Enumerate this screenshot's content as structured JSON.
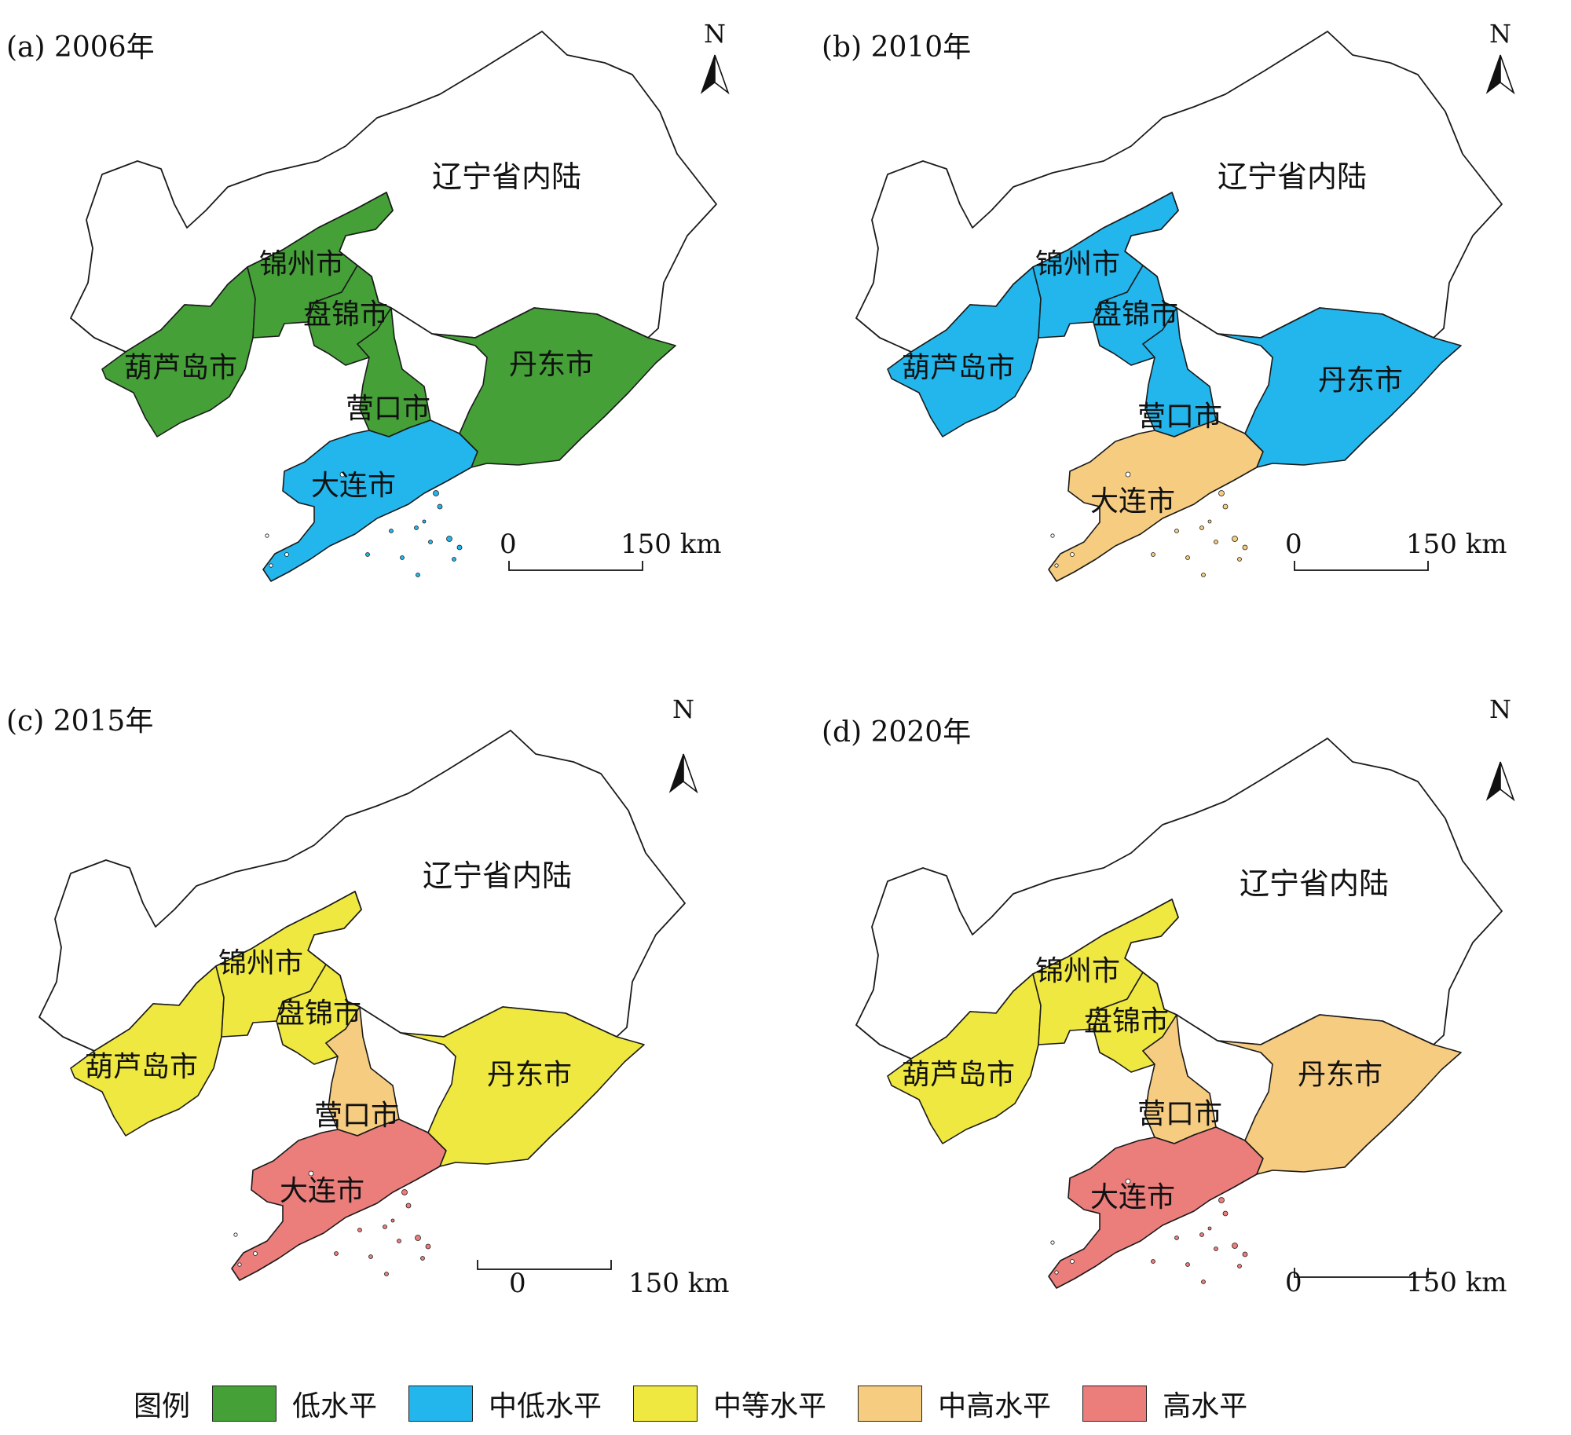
{
  "inland_label": "辽宁省内陆",
  "north_label": "N",
  "scale": {
    "zero": "0",
    "end": "150 km"
  },
  "legend": {
    "title": "图例",
    "items": [
      {
        "key": "low",
        "label": "低水平",
        "color": "#44a037"
      },
      {
        "key": "midlow",
        "label": "中低水平",
        "color": "#22b6ec"
      },
      {
        "key": "mid",
        "label": "中等水平",
        "color": "#efe840"
      },
      {
        "key": "midhigh",
        "label": "中高水平",
        "color": "#f5cc80"
      },
      {
        "key": "high",
        "label": "高水平",
        "color": "#eb7d7b"
      }
    ]
  },
  "panels": [
    {
      "title": "(a) 2006年",
      "regions": [
        {
          "name": "葫芦岛市",
          "level": "low"
        },
        {
          "name": "锦州市",
          "level": "low"
        },
        {
          "name": "盘锦市",
          "level": "low"
        },
        {
          "name": "营口市",
          "level": "low"
        },
        {
          "name": "大连市",
          "level": "midlow"
        },
        {
          "name": "丹东市",
          "level": "low"
        }
      ]
    },
    {
      "title": "(b) 2010年",
      "regions": [
        {
          "name": "葫芦岛市",
          "level": "midlow"
        },
        {
          "name": "锦州市",
          "level": "midlow"
        },
        {
          "name": "盘锦市",
          "level": "midlow"
        },
        {
          "name": "营口市",
          "level": "midlow"
        },
        {
          "name": "大连市",
          "level": "midhigh"
        },
        {
          "name": "丹东市",
          "level": "midlow"
        }
      ]
    },
    {
      "title": "(c) 2015年",
      "regions": [
        {
          "name": "葫芦岛市",
          "level": "mid"
        },
        {
          "name": "锦州市",
          "level": "mid"
        },
        {
          "name": "盘锦市",
          "level": "mid"
        },
        {
          "name": "营口市",
          "level": "midhigh"
        },
        {
          "name": "大连市",
          "level": "high"
        },
        {
          "name": "丹东市",
          "level": "mid"
        }
      ]
    },
    {
      "title": "(d) 2020年",
      "regions": [
        {
          "name": "葫芦岛市",
          "level": "mid"
        },
        {
          "name": "锦州市",
          "level": "mid"
        },
        {
          "name": "盘锦市",
          "level": "mid"
        },
        {
          "name": "营口市",
          "level": "midhigh"
        },
        {
          "name": "大连市",
          "level": "high"
        },
        {
          "name": "丹东市",
          "level": "midhigh"
        }
      ]
    }
  ]
}
